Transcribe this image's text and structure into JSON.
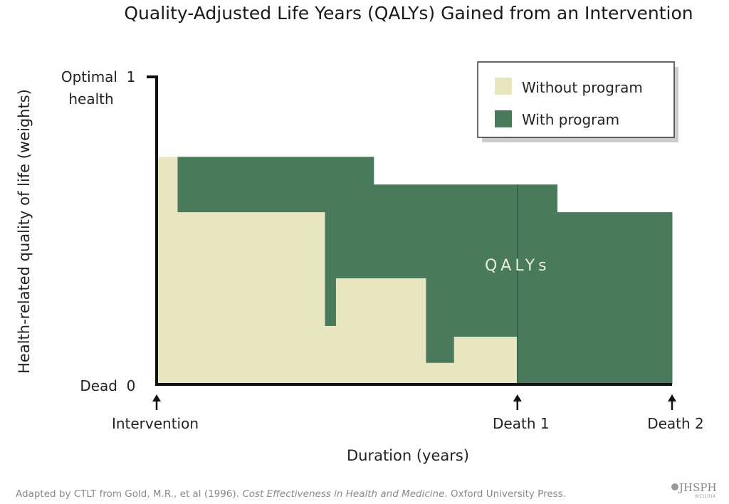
{
  "chart_data": {
    "type": "area",
    "title": "Quality-Adjusted Life Years (QALYs) Gained from an Intervention",
    "xlabel": "Duration (years)",
    "ylabel": "Health-related quality of life (weights)",
    "ylim": [
      0,
      1
    ],
    "xlim": [
      0,
      1
    ],
    "grid": false,
    "legend_placement": "top-right",
    "y_ticks": [
      {
        "value": 1,
        "label": "1",
        "caption": "Optimal health",
        "caption_lines": [
          "Optimal",
          "health"
        ]
      },
      {
        "value": 0,
        "label": "0",
        "caption": "Dead",
        "caption_lines": [
          "Dead"
        ]
      }
    ],
    "x_markers": [
      {
        "value": 0,
        "label": "Intervention"
      },
      {
        "value": 0.7,
        "label": "Death 1"
      },
      {
        "value": 1.0,
        "label": "Death 2"
      }
    ],
    "series": [
      {
        "name": "Without program",
        "color": "#e8e6c0",
        "steps": [
          {
            "x0": 0.0,
            "x1": 0.04,
            "y": 0.74
          },
          {
            "x0": 0.04,
            "x1": 0.326,
            "y": 0.56
          },
          {
            "x0": 0.326,
            "x1": 0.348,
            "y": 0.19
          },
          {
            "x0": 0.348,
            "x1": 0.522,
            "y": 0.345
          },
          {
            "x0": 0.522,
            "x1": 0.577,
            "y": 0.07
          },
          {
            "x0": 0.577,
            "x1": 0.7,
            "y": 0.155
          }
        ]
      },
      {
        "name": "With program",
        "color": "#4a7a5c",
        "steps": [
          {
            "x0": 0.04,
            "x1": 0.421,
            "y": 0.74
          },
          {
            "x0": 0.421,
            "x1": 0.777,
            "y": 0.65
          },
          {
            "x0": 0.777,
            "x1": 1.0,
            "y": 0.56
          }
        ]
      }
    ],
    "annotations": [
      {
        "text": "QALYs",
        "x": 0.7,
        "y": 0.37
      }
    ]
  },
  "legend": {
    "items": [
      {
        "label": "Without program",
        "color": "#e8e6c0"
      },
      {
        "label": "With program",
        "color": "#4a7a5c"
      }
    ]
  },
  "footer": {
    "prefix": "Adapted by CTLT from Gold, M.R., et al (1996). ",
    "italic": "Cost Effectiveness in Health and Medicine",
    "suffix": ". Oxford University Press.",
    "logo_text": "JHSPH",
    "logo_code": "W111014"
  }
}
